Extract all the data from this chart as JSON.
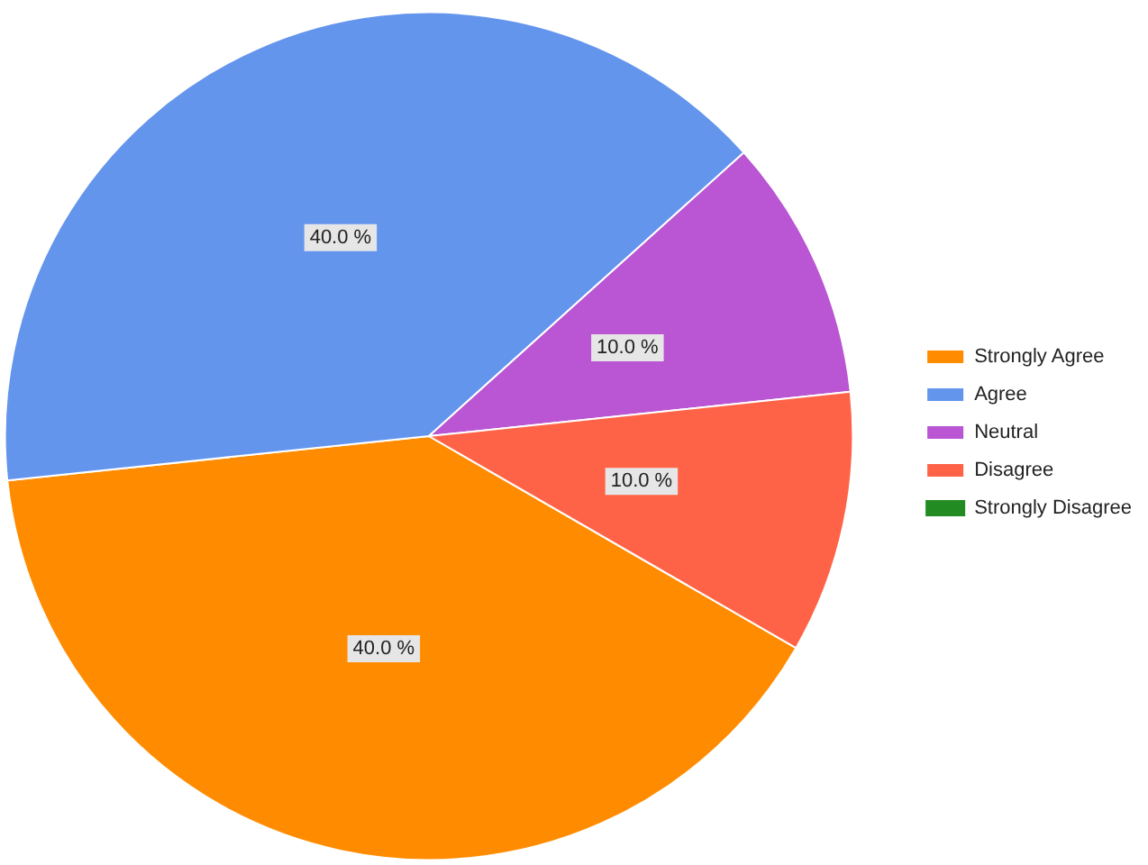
{
  "chart_data": {
    "type": "pie",
    "categories": [
      "Strongly Agree",
      "Agree",
      "Neutral",
      "Disagree",
      "Strongly Disagree"
    ],
    "values": [
      40,
      40,
      10,
      10,
      0
    ],
    "colors": [
      "#ff8c00",
      "#6495ed",
      "#ba55d3",
      "#ff6347",
      "#228b22"
    ],
    "value_labels": [
      "40.0 %",
      "40.0 %",
      "10.0 %",
      "10.0 %",
      null
    ],
    "legend": "right"
  }
}
